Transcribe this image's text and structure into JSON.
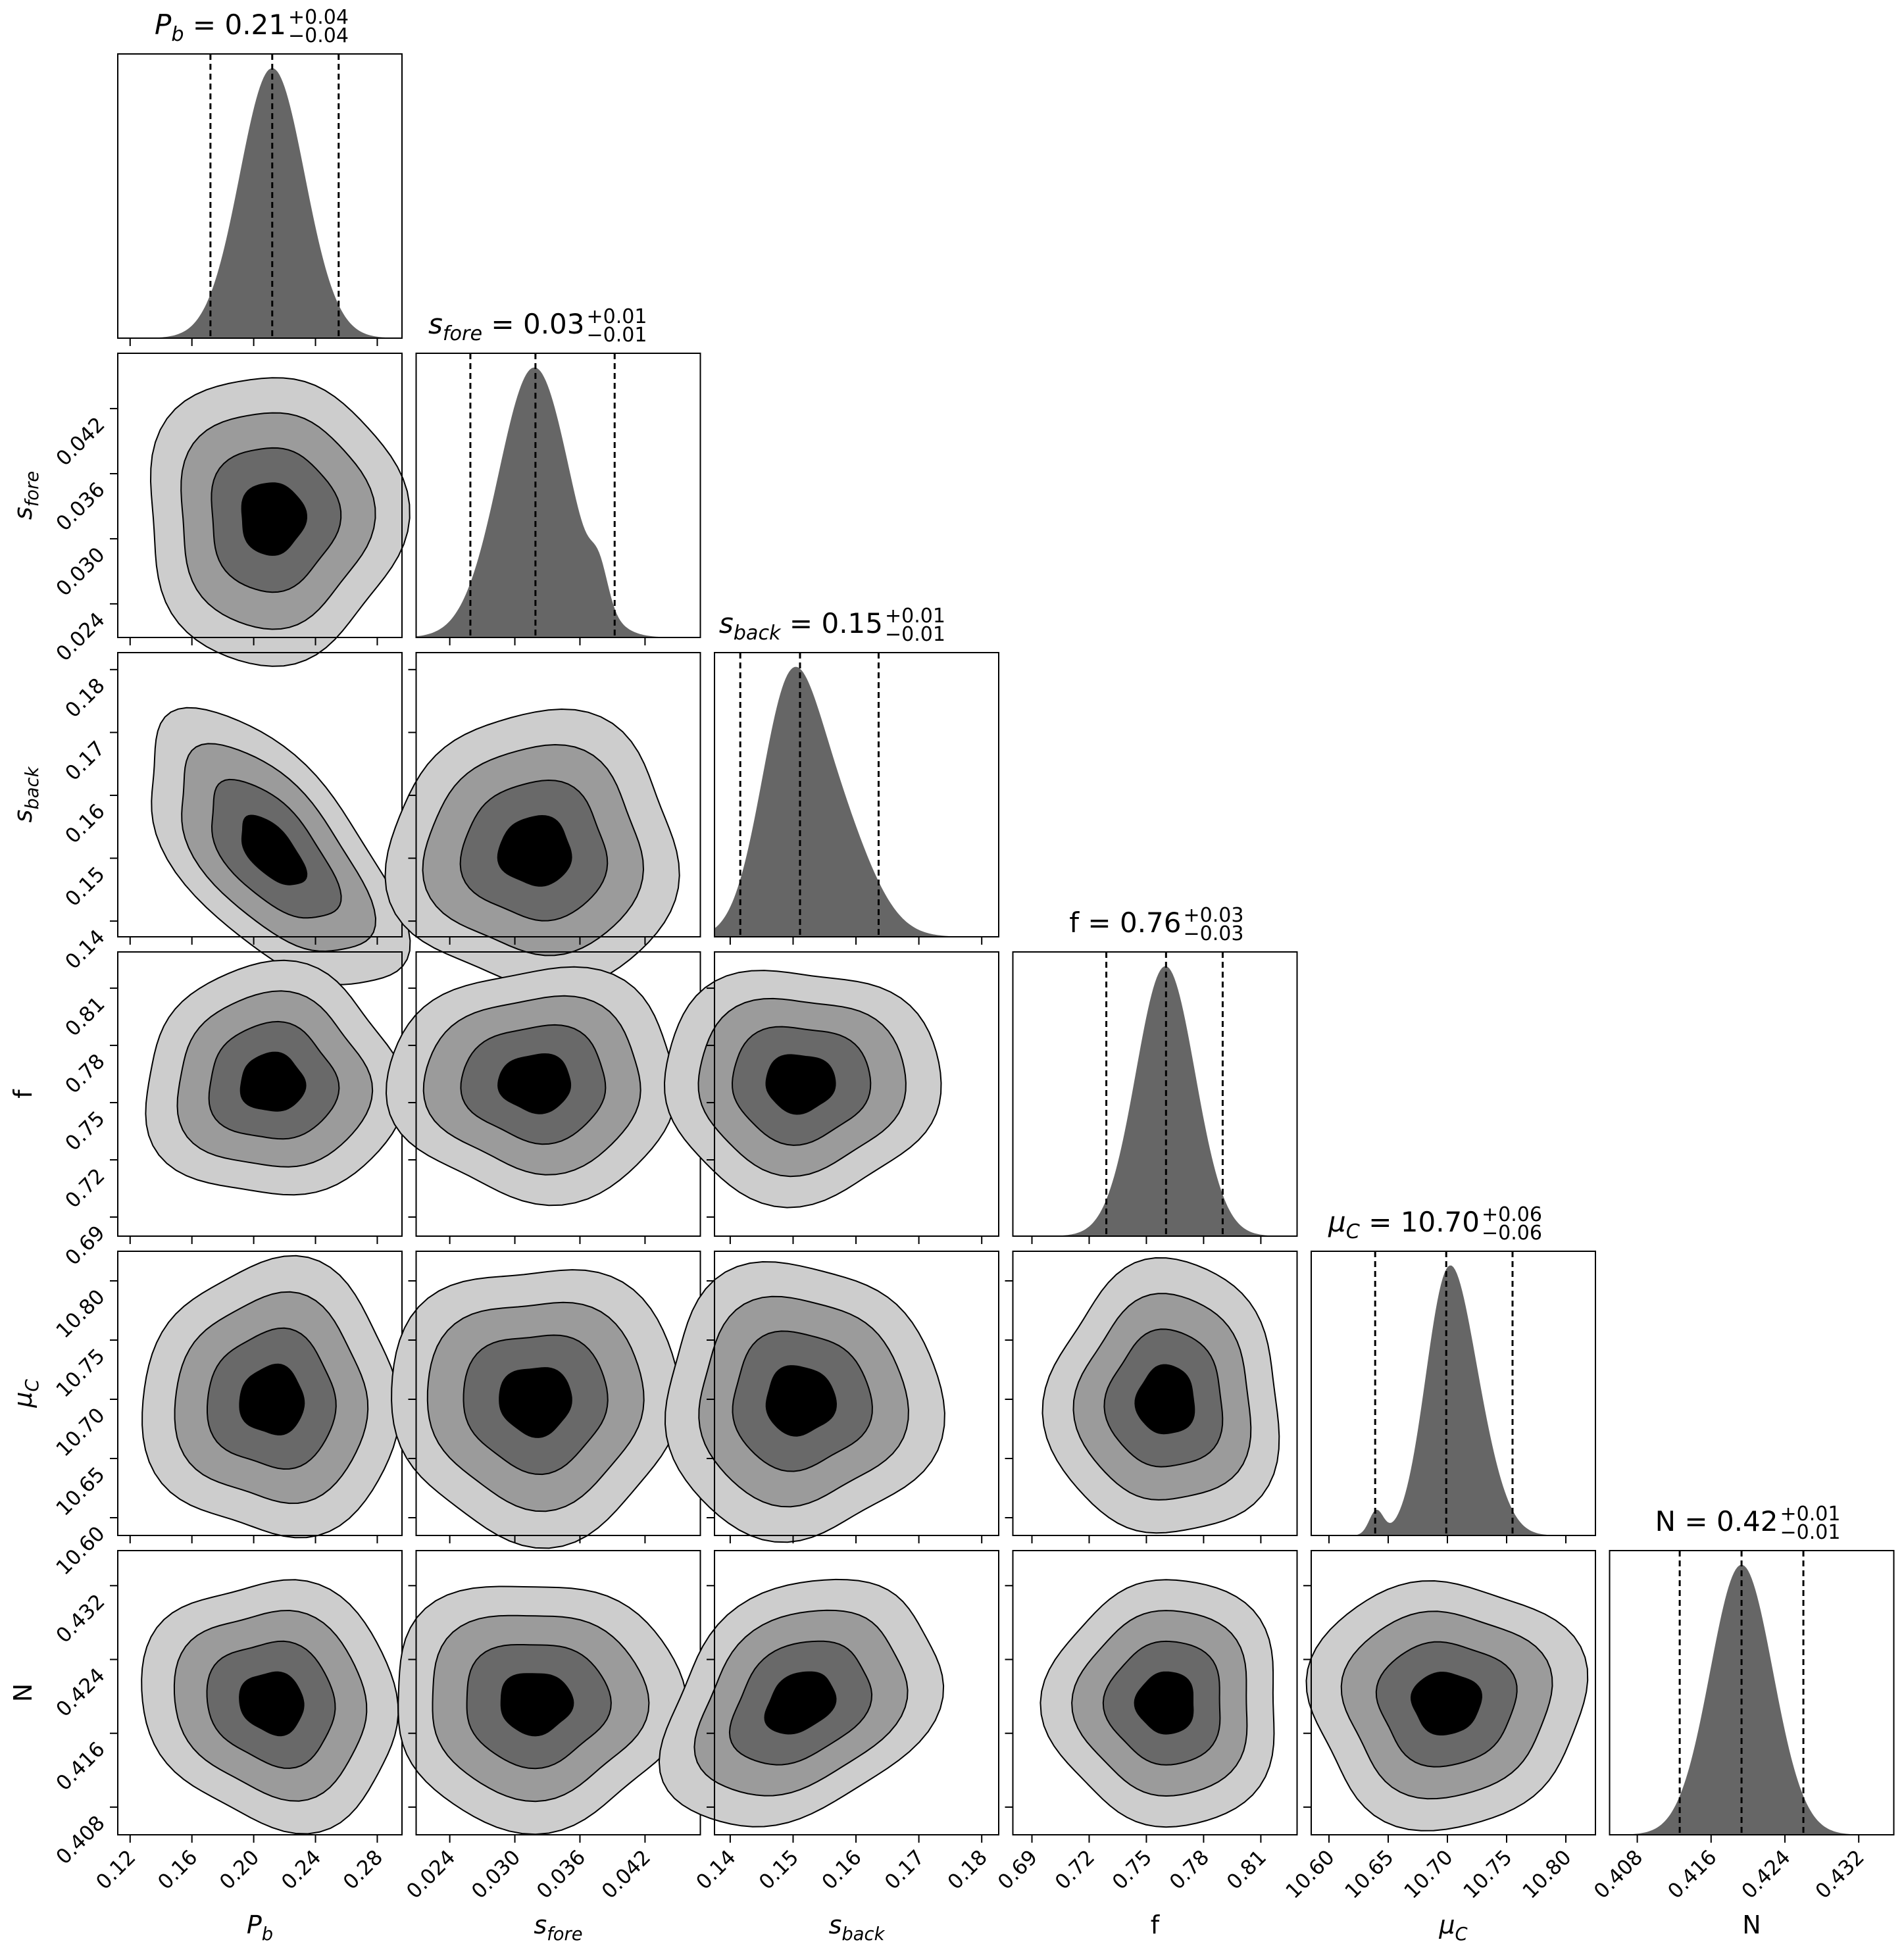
{
  "chart_data": {
    "type": "corner",
    "title": "",
    "colors": {
      "hist": "#666666",
      "contour_levels": [
        "#cdcdcd",
        "#9b9b9b",
        "#696969",
        "#000000"
      ],
      "line": "#000000"
    },
    "params": [
      {
        "name": "P_b",
        "label_main": "P",
        "label_sub": "b",
        "value": "0.21",
        "plus": "+0.04",
        "minus": "−0.04",
        "quantiles": [
          0.172,
          0.212,
          0.255
        ],
        "range": [
          0.112,
          0.296
        ],
        "ticks": [
          "0.12",
          "0.16",
          "0.20",
          "0.24",
          "0.28"
        ],
        "hist_components": [
          {
            "mu": 0.212,
            "sigma": 0.021,
            "w": 1
          }
        ]
      },
      {
        "name": "s_fore",
        "label_main": "s",
        "label_sub": "fore",
        "value": "0.03",
        "plus": "+0.01",
        "minus": "−0.01",
        "quantiles": [
          0.0259,
          0.0319,
          0.0392
        ],
        "range": [
          0.0209,
          0.0471
        ],
        "ticks": [
          "0.024",
          "0.030",
          "0.036",
          "0.042"
        ],
        "hist_components": [
          {
            "mu": 0.0318,
            "sigma": 0.0033,
            "w": 1
          },
          {
            "mu": 0.0378,
            "sigma": 0.0008,
            "w": 0.12
          }
        ]
      },
      {
        "name": "s_back",
        "label_main": "s",
        "label_sub": "back",
        "value": "0.15",
        "plus": "+0.01",
        "minus": "−0.01",
        "quantiles": [
          0.1416,
          0.1511,
          0.1636
        ],
        "range": [
          0.1375,
          0.1827
        ],
        "ticks": [
          "0.14",
          "0.15",
          "0.16",
          "0.17",
          "0.18"
        ],
        "hist_components": [
          {
            "mu": 0.149,
            "sigma": 0.0045,
            "w": 0.7
          },
          {
            "mu": 0.156,
            "sigma": 0.0058,
            "w": 0.45
          }
        ]
      },
      {
        "name": "f",
        "label_main": "f",
        "label_sub": "",
        "value": "0.76",
        "plus": "+0.03",
        "minus": "−0.03",
        "quantiles": [
          0.729,
          0.7603,
          0.79
        ],
        "range": [
          0.68,
          0.829
        ],
        "ticks": [
          "0.69",
          "0.72",
          "0.75",
          "0.78",
          "0.81"
        ],
        "hist_components": [
          {
            "mu": 0.76,
            "sigma": 0.0155,
            "w": 1
          }
        ]
      },
      {
        "name": "mu_C",
        "label_main": "μ",
        "label_sub": "C",
        "value": "10.70",
        "plus": "+0.06",
        "minus": "−0.06",
        "quantiles": [
          10.639,
          10.699,
          10.755
        ],
        "range": [
          10.585,
          10.825
        ],
        "ticks": [
          "10.60",
          "10.65",
          "10.70",
          "10.75",
          "10.80"
        ],
        "hist_components": [
          {
            "mu": 10.697,
            "sigma": 0.018,
            "w": 1
          },
          {
            "mu": 10.72,
            "sigma": 0.02,
            "w": 0.55
          },
          {
            "mu": 10.64,
            "sigma": 0.006,
            "w": 0.12
          }
        ]
      },
      {
        "name": "N",
        "label_main": "N",
        "label_sub": "",
        "value": "0.42",
        "plus": "+0.01",
        "minus": "−0.01",
        "quantiles": [
          0.4126,
          0.4193,
          0.426
        ],
        "range": [
          0.405,
          0.4358
        ],
        "ticks": [
          "0.408",
          "0.416",
          "0.424",
          "0.432"
        ],
        "hist_components": [
          {
            "mu": 0.4193,
            "sigma": 0.0034,
            "w": 1
          }
        ]
      }
    ],
    "correlations": {
      "0-2": -0.6,
      "2-5": 0.3,
      "0-5": -0.1
    }
  }
}
